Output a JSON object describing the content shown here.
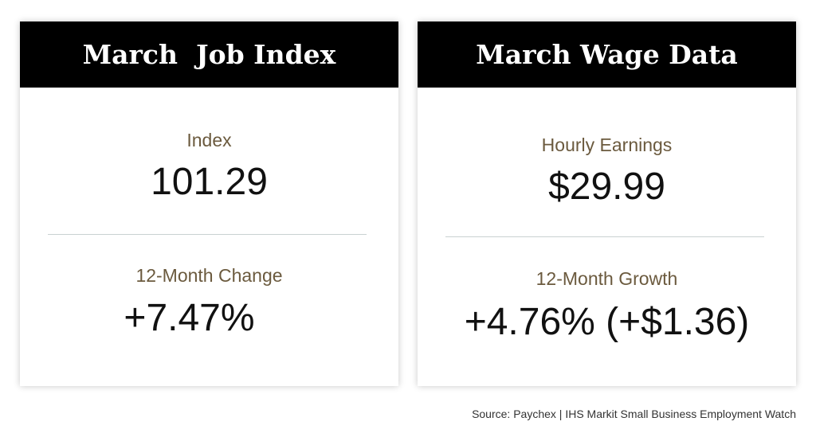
{
  "job_index": {
    "title": "March  Job Index",
    "index_label": "Index",
    "index_value": "101.29",
    "change_label": "12-Month Change",
    "change_value": "+7.47%"
  },
  "wage_data": {
    "title": "March Wage Data",
    "earnings_label": "Hourly Earnings",
    "earnings_value": "$29.99",
    "growth_label": "12-Month Growth",
    "growth_value": "+4.76% (+$1.36)"
  },
  "source": "Source: Paychex | IHS Markit Small Business Employment Watch",
  "colors": {
    "header_bg": "#000000",
    "header_text": "#ffffff",
    "label_text": "#6b5a3e",
    "value_text": "#111111"
  }
}
